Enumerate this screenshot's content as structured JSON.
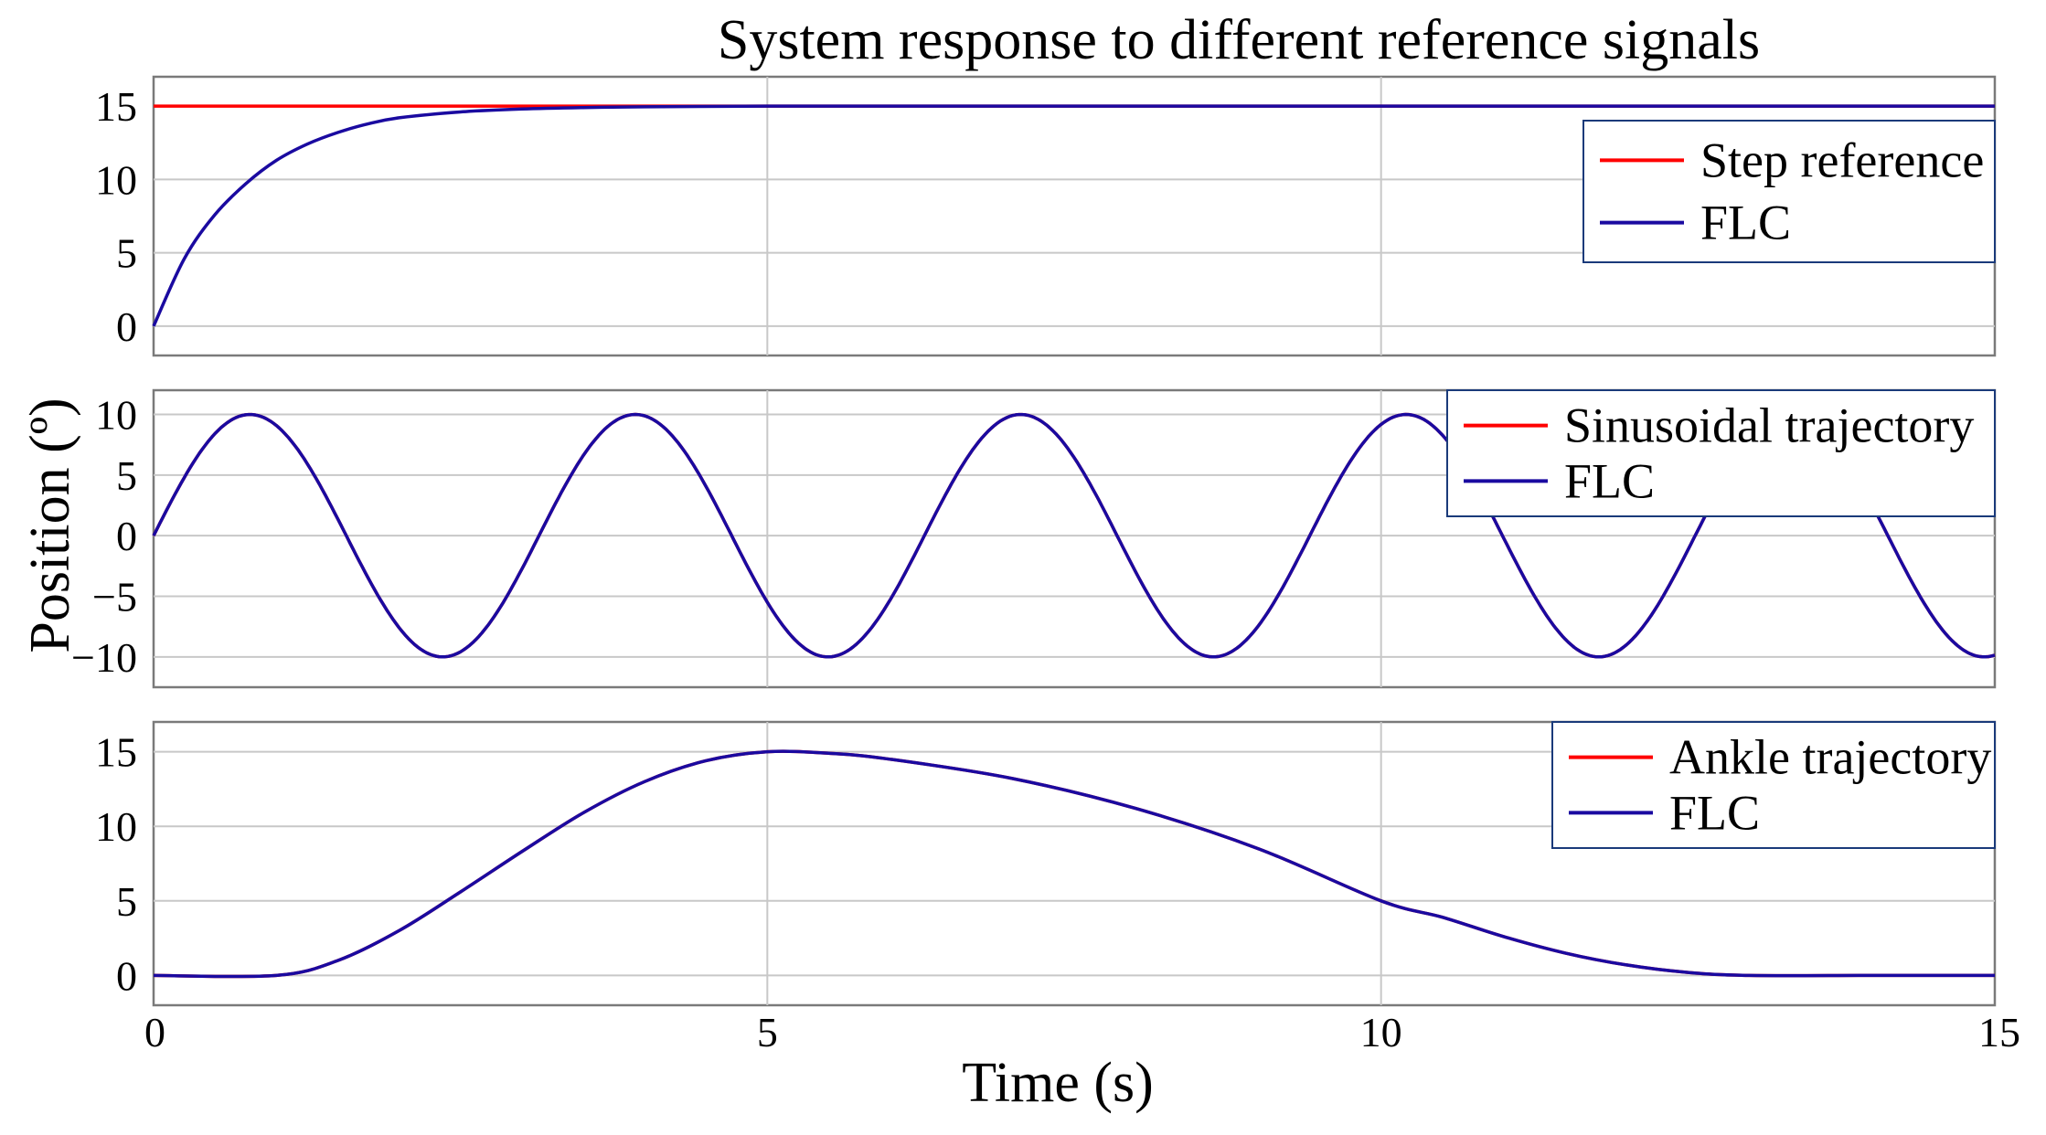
{
  "chart_data": {
    "title": "System response to different reference signals",
    "xlabel": "Time (s)",
    "ylabel": "Position (º)",
    "colors": {
      "reference": "#ff0000",
      "flc": "#1a0aa0"
    },
    "x_ticks": [
      "0",
      "5",
      "10",
      "15"
    ],
    "xlim": [
      0,
      15
    ],
    "panels": [
      {
        "type": "line",
        "name": "step",
        "ylim": [
          -2,
          17
        ],
        "y_ticks": [
          {
            "value": 0,
            "label": "0"
          },
          {
            "value": 5,
            "label": "5"
          },
          {
            "value": 10,
            "label": "10"
          },
          {
            "value": 15,
            "label": "15"
          }
        ],
        "grid": true,
        "legend_position": "top-right",
        "legend": [
          "Step reference",
          "FLC"
        ],
        "series": [
          {
            "name": "Step reference",
            "x": [
              0,
              15
            ],
            "y": [
              15,
              15
            ]
          },
          {
            "name": "FLC",
            "x": [
              0,
              0.25,
              0.5,
              0.75,
              1.0,
              1.25,
              1.5,
              1.75,
              2.0,
              2.5,
              3.0,
              3.5,
              4.0,
              5.0,
              7.0,
              10.0,
              15.0
            ],
            "y": [
              0,
              4.6,
              7.6,
              9.7,
              11.3,
              12.4,
              13.2,
              13.8,
              14.2,
              14.6,
              14.8,
              14.9,
              14.95,
              15.0,
              15.0,
              15.0,
              15.0
            ]
          }
        ]
      },
      {
        "type": "line",
        "name": "sinusoidal",
        "ylim": [
          -12.5,
          12
        ],
        "y_ticks": [
          {
            "value": -10,
            "label": "−10"
          },
          {
            "value": -5,
            "label": "−5"
          },
          {
            "value": 0,
            "label": "0"
          },
          {
            "value": 5,
            "label": "5"
          },
          {
            "value": 10,
            "label": "10"
          }
        ],
        "grid": true,
        "legend_position": "top-right",
        "legend": [
          "Sinusoidal trajectory",
          "FLC"
        ],
        "amplitude": 10,
        "frequency_hz": 0.3185,
        "series": [
          {
            "name": "Sinusoidal trajectory",
            "function": "sine"
          },
          {
            "name": "FLC",
            "function": "sine"
          }
        ]
      },
      {
        "type": "line",
        "name": "ankle",
        "ylim": [
          -2,
          17
        ],
        "y_ticks": [
          {
            "value": 0,
            "label": "0"
          },
          {
            "value": 5,
            "label": "5"
          },
          {
            "value": 10,
            "label": "10"
          },
          {
            "value": 15,
            "label": "15"
          }
        ],
        "grid": true,
        "legend_position": "top-right",
        "legend": [
          "Ankle trajectory",
          "FLC"
        ],
        "series": [
          {
            "name": "Ankle trajectory",
            "x": [
              0,
              1.0,
              1.5,
              2.0,
              2.5,
              3.0,
              3.5,
              4.0,
              4.5,
              5.0,
              5.5,
              6.0,
              7.0,
              8.0,
              9.0,
              10.0,
              10.5,
              11.0,
              11.5,
              12.0,
              12.5,
              13.0,
              14.0,
              15.0
            ],
            "y": [
              0,
              0,
              1.0,
              3.0,
              5.6,
              8.3,
              10.9,
              13.0,
              14.4,
              15.0,
              14.9,
              14.5,
              13.2,
              11.2,
              8.5,
              5.0,
              3.9,
              2.6,
              1.5,
              0.7,
              0.2,
              0,
              0,
              0
            ]
          },
          {
            "name": "FLC",
            "x": [
              0,
              1.0,
              1.5,
              2.0,
              2.5,
              3.0,
              3.5,
              4.0,
              4.5,
              5.0,
              5.5,
              6.0,
              7.0,
              8.0,
              9.0,
              10.0,
              10.5,
              11.0,
              11.5,
              12.0,
              12.5,
              13.0,
              14.0,
              15.0
            ],
            "y": [
              0,
              0,
              1.0,
              3.0,
              5.6,
              8.3,
              10.9,
              13.0,
              14.4,
              15.0,
              14.9,
              14.5,
              13.2,
              11.2,
              8.5,
              5.0,
              3.9,
              2.6,
              1.5,
              0.7,
              0.2,
              0,
              0,
              0
            ]
          }
        ]
      }
    ]
  }
}
